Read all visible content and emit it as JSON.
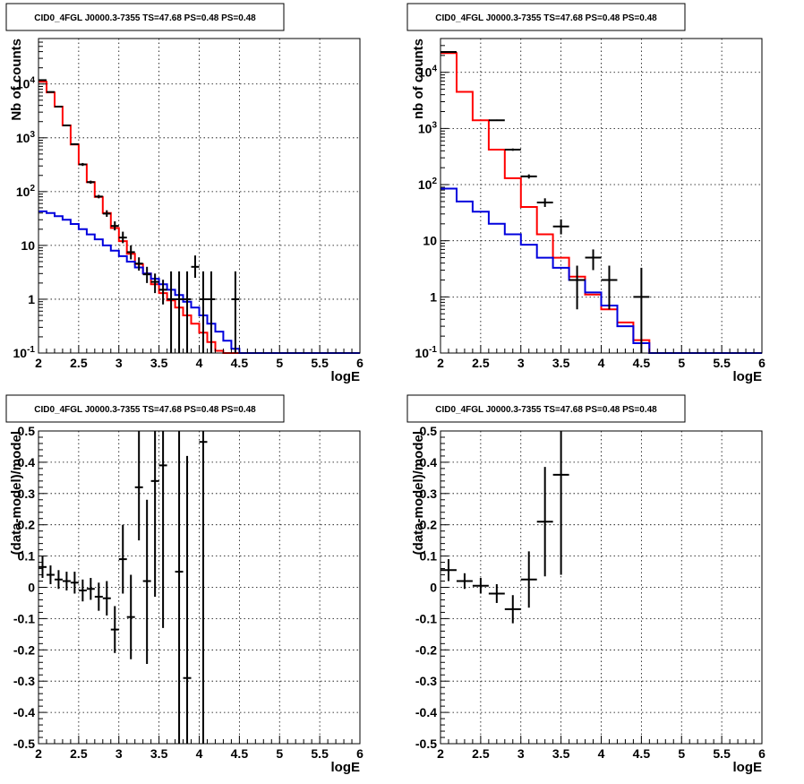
{
  "colors": {
    "data": "#000000",
    "total_model": "#ff0000",
    "component_model": "#0000dd"
  },
  "chart_data": [
    {
      "type": "line",
      "title": "CID0_4FGL J0000.3-7355 TS=47.68 PS=0.48 PS=0.48",
      "xlabel": "logE",
      "ylabel": "Nb of counts",
      "xlim": [
        2,
        6
      ],
      "ylim": [
        0.1,
        70000
      ],
      "yscale": "log",
      "grid": true,
      "x_ticks": [
        "2",
        "2.5",
        "3",
        "3.5",
        "4",
        "4.5",
        "5",
        "5.5",
        "6"
      ],
      "y_ticks": [
        {
          "v": 0.1,
          "t": "10^-1"
        },
        {
          "v": 1,
          "t": "1"
        },
        {
          "v": 10,
          "t": "10"
        },
        {
          "v": 100,
          "t": "10^2"
        },
        {
          "v": 1000,
          "t": "10^3"
        },
        {
          "v": 10000,
          "t": "10^4"
        }
      ],
      "bin_edges": [
        2,
        2.1,
        2.2,
        2.3,
        2.4,
        2.5,
        2.6,
        2.7,
        2.8,
        2.9,
        3.0,
        3.1,
        3.2,
        3.3,
        3.4,
        3.5,
        3.6,
        3.7,
        3.8,
        3.9,
        4.0,
        4.1,
        4.2,
        4.3,
        4.4,
        4.5,
        4.6,
        4.7,
        4.8,
        4.9,
        5.0,
        5.1,
        5.2,
        5.3,
        5.4,
        5.5,
        5.6,
        5.7,
        5.8,
        5.9,
        6.0
      ],
      "series": [
        {
          "name": "",
          "kind": "hist",
          "color": "#ff0000",
          "values": [
            11000,
            7000,
            3800,
            1700,
            750,
            320,
            150,
            80,
            40,
            21,
            12,
            7,
            4.5,
            3,
            1.9,
            1.3,
            0.95,
            0.7,
            0.5,
            0.35,
            0.24,
            0.16,
            0.11,
            0.1,
            0.1,
            0.1,
            0.1,
            0.1,
            0.1,
            0.1,
            0.1,
            0.1,
            0.1,
            0.1,
            0.1,
            0.1,
            0.1,
            0.1,
            0.1,
            0.1
          ]
        },
        {
          "name": "",
          "kind": "hist",
          "color": "#0000dd",
          "values": [
            43,
            40,
            35,
            30,
            25,
            20,
            16,
            13,
            10,
            8,
            6.3,
            5,
            3.9,
            3,
            2.4,
            1.9,
            1.5,
            1.2,
            0.9,
            0.7,
            0.5,
            0.35,
            0.25,
            0.17,
            0.12,
            0.1,
            0.1,
            0.1,
            0.1,
            0.1,
            0.1,
            0.1,
            0.1,
            0.1,
            0.1,
            0.1,
            0.1,
            0.1,
            0.1,
            0.1
          ]
        },
        {
          "name": "",
          "kind": "points",
          "color": "#000000",
          "x": [
            2.05,
            2.15,
            2.25,
            2.35,
            2.45,
            2.55,
            2.65,
            2.75,
            2.85,
            2.95,
            3.05,
            3.15,
            3.25,
            3.35,
            3.45,
            3.55,
            3.65,
            3.75,
            3.85,
            3.95,
            4.05,
            4.15,
            4.45
          ],
          "y": [
            11800,
            7100,
            3800,
            1700,
            760,
            320,
            150,
            81,
            39,
            23,
            14,
            7.5,
            4.6,
            2.9,
            2.1,
            1.5,
            1,
            1,
            1,
            4,
            1,
            1,
            1
          ],
          "y_low": [
            11600,
            6900,
            3700,
            1650,
            730,
            300,
            140,
            75,
            34,
            19,
            11,
            5.5,
            3.4,
            2,
            1.3,
            0.8,
            0.1,
            0.1,
            0.1,
            2.5,
            0.1,
            0.1,
            0.1
          ],
          "y_high": [
            12000,
            7300,
            3900,
            1750,
            790,
            340,
            160,
            87,
            45,
            28,
            18,
            10,
            6,
            4,
            3,
            2.3,
            3.3,
            3.3,
            3.3,
            6.5,
            3.3,
            3.3,
            3.3
          ]
        }
      ]
    },
    {
      "type": "line",
      "title": "CID0_4FGL J0000.3-7355 TS=47.68 PS=0.48 PS=0.48",
      "xlabel": "logE",
      "ylabel": "nb of counts",
      "xlim": [
        2,
        6
      ],
      "ylim": [
        0.1,
        40000
      ],
      "yscale": "log",
      "grid": true,
      "x_ticks": [
        "2",
        "2.5",
        "3",
        "3.5",
        "4",
        "4.5",
        "5",
        "5.5",
        "6"
      ],
      "y_ticks": [
        {
          "v": 0.1,
          "t": "10^-1"
        },
        {
          "v": 1,
          "t": "1"
        },
        {
          "v": 10,
          "t": "10"
        },
        {
          "v": 100,
          "t": "10^2"
        },
        {
          "v": 1000,
          "t": "10^3"
        },
        {
          "v": 10000,
          "t": "10^4"
        }
      ],
      "bin_edges": [
        2,
        2.2,
        2.4,
        2.6,
        2.8,
        3.0,
        3.2,
        3.4,
        3.6,
        3.8,
        4.0,
        4.2,
        4.4,
        4.6,
        4.8,
        5.0,
        5.2,
        5.4,
        5.6,
        5.8,
        6.0
      ],
      "series": [
        {
          "name": "",
          "kind": "hist",
          "color": "#ff0000",
          "values": [
            22000,
            4500,
            1400,
            420,
            130,
            40,
            13,
            5,
            2.3,
            1.1,
            0.6,
            0.35,
            0.17,
            0.1,
            0.1,
            0.1,
            0.1,
            0.1,
            0.1,
            0.1
          ]
        },
        {
          "name": "",
          "kind": "hist",
          "color": "#0000dd",
          "values": [
            85,
            50,
            33,
            20,
            13,
            8.5,
            5,
            3.3,
            2,
            1.2,
            0.7,
            0.3,
            0.15,
            0.1,
            0.1,
            0.1,
            0.1,
            0.1,
            0.1,
            0.1
          ]
        },
        {
          "name": "",
          "kind": "points",
          "color": "#000000",
          "x": [
            2.1,
            2.7,
            2.9,
            3.1,
            3.3,
            3.5,
            3.7,
            3.9,
            4.1,
            4.5
          ],
          "y": [
            23000,
            1400,
            420,
            140,
            48,
            18,
            2,
            5,
            2,
            1
          ],
          "y_low": [
            22500,
            1360,
            400,
            128,
            40,
            13,
            0.6,
            3,
            0.6,
            0.1
          ],
          "y_high": [
            23500,
            1440,
            440,
            152,
            57,
            24,
            3.6,
            7,
            3.6,
            3.3
          ]
        }
      ]
    },
    {
      "type": "scatter",
      "title": "CID0_4FGL J0000.3-7355 TS=47.68 PS=0.48 PS=0.48",
      "xlabel": "logE",
      "ylabel": "(data-model)/model",
      "xlim": [
        2,
        6
      ],
      "ylim": [
        -0.5,
        0.5
      ],
      "yscale": "linear",
      "grid": true,
      "x_ticks": [
        "2",
        "2.5",
        "3",
        "3.5",
        "4",
        "4.5",
        "5",
        "5.5",
        "6"
      ],
      "y_ticks": [
        {
          "v": -0.5,
          "t": "-0.5"
        },
        {
          "v": -0.4,
          "t": "-0.4"
        },
        {
          "v": -0.3,
          "t": "-0.3"
        },
        {
          "v": -0.2,
          "t": "-0.2"
        },
        {
          "v": -0.1,
          "t": "-0.1"
        },
        {
          "v": 0,
          "t": "0"
        },
        {
          "v": 0.1,
          "t": "0.1"
        },
        {
          "v": 0.2,
          "t": "0.2"
        },
        {
          "v": 0.3,
          "t": "0.3"
        },
        {
          "v": 0.4,
          "t": "0.4"
        },
        {
          "v": 0.5,
          "t": "0.5"
        }
      ],
      "series": [
        {
          "name": "",
          "kind": "points",
          "color": "#000000",
          "xerr": 0.05,
          "x": [
            2.05,
            2.15,
            2.25,
            2.35,
            2.45,
            2.55,
            2.65,
            2.75,
            2.85,
            2.95,
            3.05,
            3.15,
            3.25,
            3.35,
            3.45,
            3.55,
            3.75,
            3.85,
            4.05
          ],
          "y": [
            0.065,
            0.04,
            0.025,
            0.02,
            0.015,
            -0.01,
            -0.005,
            -0.03,
            -0.035,
            -0.135,
            0.09,
            -0.095,
            0.32,
            0.02,
            0.34,
            0.39,
            0.05,
            -0.29,
            0.465
          ],
          "y_low": [
            0.03,
            0.01,
            -0.005,
            -0.01,
            -0.02,
            -0.045,
            -0.04,
            -0.075,
            -0.09,
            -0.21,
            -0.02,
            -0.23,
            0.15,
            -0.245,
            -0.03,
            -0.13,
            -0.5,
            -0.5,
            -0.5
          ],
          "y_high": [
            0.1,
            0.07,
            0.055,
            0.05,
            0.05,
            0.025,
            0.03,
            0.015,
            0.02,
            -0.06,
            0.2,
            0.04,
            0.5,
            0.28,
            0.5,
            0.5,
            0.5,
            0.42,
            0.5
          ]
        }
      ]
    },
    {
      "type": "scatter",
      "title": "CID0_4FGL J0000.3-7355 TS=47.68 PS=0.48 PS=0.48",
      "xlabel": "logE",
      "ylabel": "(data-model)/model",
      "xlim": [
        2,
        6
      ],
      "ylim": [
        -0.5,
        0.5
      ],
      "yscale": "linear",
      "grid": true,
      "x_ticks": [
        "2",
        "2.5",
        "3",
        "3.5",
        "4",
        "4.5",
        "5",
        "5.5",
        "6"
      ],
      "y_ticks": [
        {
          "v": -0.5,
          "t": "-0.5"
        },
        {
          "v": -0.4,
          "t": "-0.4"
        },
        {
          "v": -0.3,
          "t": "-0.3"
        },
        {
          "v": -0.2,
          "t": "-0.2"
        },
        {
          "v": -0.1,
          "t": "-0.1"
        },
        {
          "v": 0,
          "t": "0"
        },
        {
          "v": 0.1,
          "t": "0.1"
        },
        {
          "v": 0.2,
          "t": "0.2"
        },
        {
          "v": 0.3,
          "t": "0.3"
        },
        {
          "v": 0.4,
          "t": "0.4"
        },
        {
          "v": 0.5,
          "t": "0.5"
        }
      ],
      "series": [
        {
          "name": "",
          "kind": "points",
          "color": "#000000",
          "xerr": 0.1,
          "x": [
            2.1,
            2.3,
            2.5,
            2.7,
            2.9,
            3.1,
            3.3,
            3.5
          ],
          "y": [
            0.055,
            0.02,
            0.005,
            -0.02,
            -0.07,
            0.025,
            0.21,
            0.36
          ],
          "y_low": [
            0.02,
            -0.005,
            -0.02,
            -0.05,
            -0.115,
            -0.065,
            0.035,
            0.04
          ],
          "y_high": [
            0.09,
            0.045,
            0.03,
            0.01,
            -0.025,
            0.115,
            0.385,
            0.5
          ]
        }
      ]
    }
  ]
}
